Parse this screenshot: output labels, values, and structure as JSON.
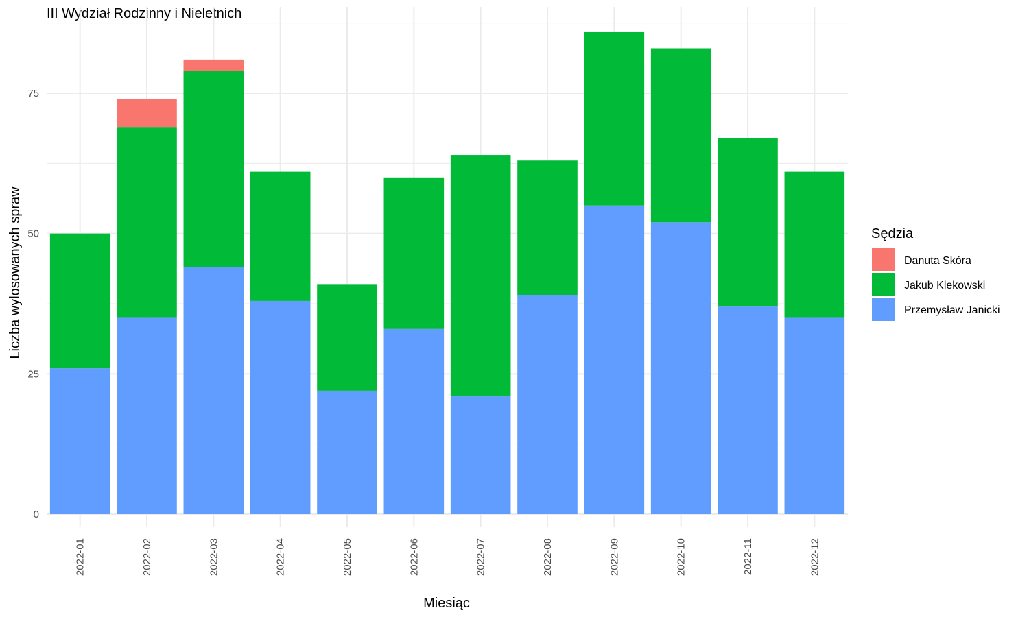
{
  "chart_data": {
    "type": "bar",
    "stacked": true,
    "title": "III Wydział Rodzinny i Nieletnich",
    "xlabel": "Miesiąc",
    "ylabel": "Liczba wylosowanych spraw",
    "categories": [
      "2022-01",
      "2022-02",
      "2022-03",
      "2022-04",
      "2022-05",
      "2022-06",
      "2022-07",
      "2022-08",
      "2022-09",
      "2022-10",
      "2022-11",
      "2022-12"
    ],
    "series": [
      {
        "name": "Przemysław Janicki",
        "color": "#619CFF",
        "values": [
          26,
          35,
          44,
          38,
          22,
          33,
          21,
          39,
          55,
          52,
          37,
          35
        ]
      },
      {
        "name": "Jakub Klekowski",
        "color": "#00BA38",
        "values": [
          24,
          34,
          35,
          23,
          19,
          27,
          43,
          24,
          31,
          31,
          30,
          26
        ]
      },
      {
        "name": "Danuta Skóra",
        "color": "#F8766D",
        "values": [
          0,
          5,
          2,
          0,
          0,
          0,
          0,
          0,
          0,
          0,
          0,
          0
        ]
      }
    ],
    "stack_order": [
      "Przemysław Janicki",
      "Jakub Klekowski",
      "Danuta Skóra"
    ],
    "ylim": [
      0,
      90
    ],
    "yticks": [
      0,
      25,
      50,
      75
    ],
    "grid": true,
    "legend": {
      "title": "Sędzia",
      "position": "right",
      "entries": [
        "Danuta Skóra",
        "Jakub Klekowski",
        "Przemysław Janicki"
      ]
    }
  }
}
